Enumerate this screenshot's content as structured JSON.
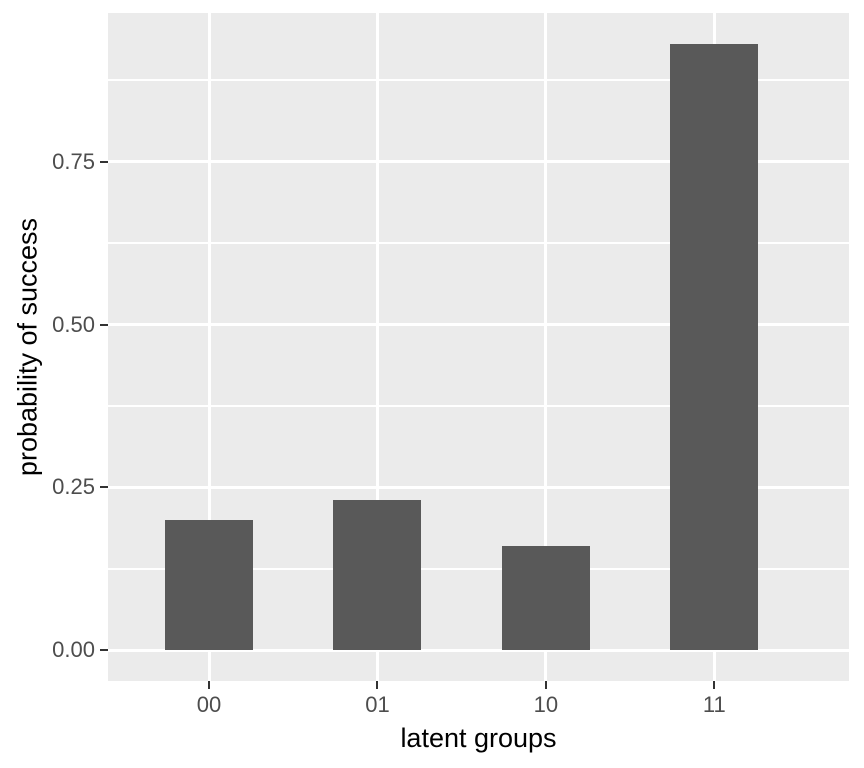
{
  "chart_data": {
    "type": "bar",
    "categories": [
      "00",
      "01",
      "10",
      "11"
    ],
    "values": [
      0.2,
      0.23,
      0.16,
      0.93
    ],
    "title": "",
    "xlabel": "latent groups",
    "ylabel": "probability of success",
    "ylim": [
      -0.047,
      0.978
    ],
    "yticks": [
      0.0,
      0.25,
      0.5,
      0.75
    ],
    "ytick_labels": [
      "0.00",
      "0.25",
      "0.50",
      "0.75"
    ],
    "yticks_minor": [
      0.125,
      0.375,
      0.625,
      0.875
    ],
    "grid": true,
    "legend": false,
    "style": "ggplot2",
    "colors": {
      "bar_fill": "#595959",
      "panel_background": "#EBEBEB",
      "gridline": "#FFFFFF",
      "tick_label": "#4D4D4D",
      "axis_title": "#000000",
      "tick_mark": "#333333",
      "figure_background": "#FFFFFF"
    }
  }
}
